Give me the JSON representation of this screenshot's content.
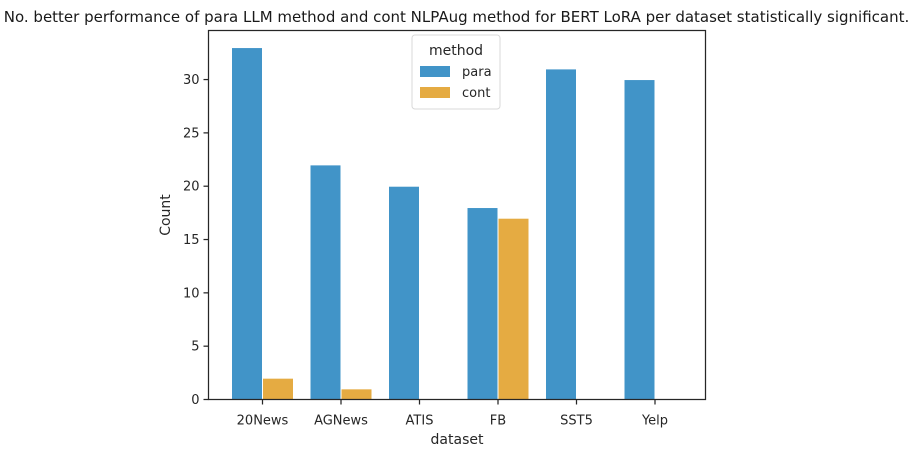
{
  "chart_data": {
    "type": "bar",
    "title": "No. better performance of para LLM method and cont NLPAug method for BERT LoRA per dataset statistically significant.",
    "xlabel": "dataset",
    "ylabel": "Count",
    "categories": [
      "20News",
      "AGNews",
      "ATIS",
      "FB",
      "SST5",
      "Yelp"
    ],
    "series": [
      {
        "name": "para",
        "values": [
          33,
          22,
          20,
          18,
          31,
          30
        ],
        "color": "#4194c8"
      },
      {
        "name": "cont",
        "values": [
          2,
          1,
          0,
          17,
          0,
          0
        ],
        "color": "#e5ab42"
      }
    ],
    "ylim": [
      0,
      34.6
    ],
    "yticks": [
      0,
      5,
      10,
      15,
      20,
      25,
      30
    ],
    "grid": false,
    "legend": {
      "title": "method",
      "placement": "top-center"
    }
  }
}
